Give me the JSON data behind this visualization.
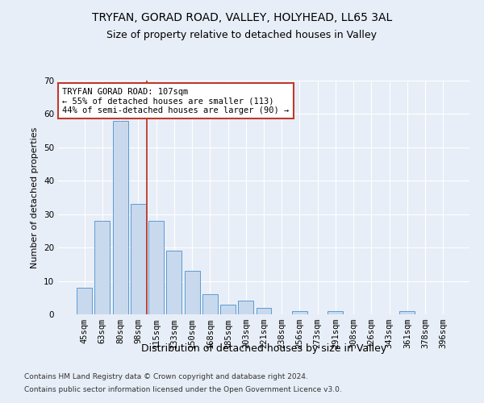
{
  "title1": "TRYFAN, GORAD ROAD, VALLEY, HOLYHEAD, LL65 3AL",
  "title2": "Size of property relative to detached houses in Valley",
  "xlabel": "Distribution of detached houses by size in Valley",
  "ylabel": "Number of detached properties",
  "categories": [
    "45sqm",
    "63sqm",
    "80sqm",
    "98sqm",
    "115sqm",
    "133sqm",
    "150sqm",
    "168sqm",
    "185sqm",
    "203sqm",
    "221sqm",
    "238sqm",
    "256sqm",
    "273sqm",
    "291sqm",
    "308sqm",
    "326sqm",
    "343sqm",
    "361sqm",
    "378sqm",
    "396sqm"
  ],
  "values": [
    8,
    28,
    58,
    33,
    28,
    19,
    13,
    6,
    3,
    4,
    2,
    0,
    1,
    0,
    1,
    0,
    0,
    0,
    1,
    0,
    0
  ],
  "bar_color": "#c9d9ed",
  "bar_edge_color": "#5b9bd5",
  "vline_x": 3.5,
  "vline_color": "#c0392b",
  "annotation_text": "TRYFAN GORAD ROAD: 107sqm\n← 55% of detached houses are smaller (113)\n44% of semi-detached houses are larger (90) →",
  "annotation_box_color": "#ffffff",
  "annotation_box_edge": "#c0392b",
  "ylim": [
    0,
    70
  ],
  "yticks": [
    0,
    10,
    20,
    30,
    40,
    50,
    60,
    70
  ],
  "footer1": "Contains HM Land Registry data © Crown copyright and database right 2024.",
  "footer2": "Contains public sector information licensed under the Open Government Licence v3.0.",
  "background_color": "#e8eef7",
  "plot_bg_color": "#e8eef7",
  "title1_fontsize": 10,
  "title2_fontsize": 9,
  "xlabel_fontsize": 9,
  "ylabel_fontsize": 8,
  "tick_fontsize": 7.5,
  "annotation_fontsize": 7.5,
  "footer_fontsize": 6.5
}
